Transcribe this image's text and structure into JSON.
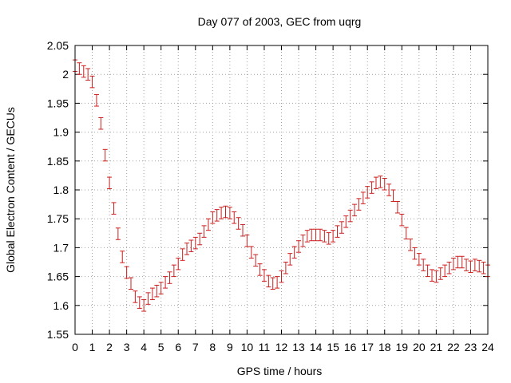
{
  "chart_data": {
    "type": "scatter",
    "title": "Day 077 of 2003, GEC from uqrg",
    "xlabel": "GPS time / hours",
    "ylabel": "Global Electron Content / GECUs",
    "xlim": [
      0,
      24
    ],
    "ylim": [
      1.55,
      2.05
    ],
    "x_ticks": [
      "0",
      "1",
      "2",
      "3",
      "4",
      "5",
      "6",
      "7",
      "8",
      "9",
      "10",
      "11",
      "12",
      "13",
      "14",
      "15",
      "16",
      "17",
      "18",
      "19",
      "20",
      "21",
      "22",
      "23",
      "24"
    ],
    "y_ticks": [
      "1.55",
      "1.6",
      "1.65",
      "1.7",
      "1.75",
      "1.8",
      "1.85",
      "1.9",
      "1.95",
      "2",
      "2.05"
    ],
    "grid": true,
    "legend": "none",
    "series_color": "#cc1f1f",
    "error": 0.01,
    "x": [
      0,
      0.25,
      0.5,
      0.75,
      1,
      1.25,
      1.5,
      1.75,
      2,
      2.25,
      2.5,
      2.75,
      3,
      3.25,
      3.5,
      3.75,
      4,
      4.25,
      4.5,
      4.75,
      5,
      5.25,
      5.5,
      5.75,
      6,
      6.25,
      6.5,
      6.75,
      7,
      7.25,
      7.5,
      7.75,
      8,
      8.25,
      8.5,
      8.75,
      9,
      9.25,
      9.5,
      9.75,
      10,
      10.25,
      10.5,
      10.75,
      11,
      11.25,
      11.5,
      11.75,
      12,
      12.25,
      12.5,
      12.75,
      13,
      13.25,
      13.5,
      13.75,
      14,
      14.25,
      14.5,
      14.75,
      15,
      15.25,
      15.5,
      15.75,
      16,
      16.25,
      16.5,
      16.75,
      17,
      17.25,
      17.5,
      17.75,
      18,
      18.25,
      18.5,
      18.75,
      19,
      19.25,
      19.5,
      19.75,
      20,
      20.25,
      20.5,
      20.75,
      21,
      21.25,
      21.5,
      21.75,
      22,
      22.25,
      22.5,
      22.75,
      23,
      23.25,
      23.5,
      23.75,
      24
    ],
    "y": [
      2.015,
      2.01,
      2.005,
      2.0,
      1.987,
      1.955,
      1.915,
      1.86,
      1.812,
      1.768,
      1.724,
      1.684,
      1.657,
      1.638,
      1.615,
      1.605,
      1.6,
      1.612,
      1.62,
      1.625,
      1.63,
      1.64,
      1.648,
      1.66,
      1.672,
      1.688,
      1.698,
      1.703,
      1.708,
      1.715,
      1.728,
      1.74,
      1.752,
      1.756,
      1.76,
      1.762,
      1.76,
      1.752,
      1.742,
      1.73,
      1.712,
      1.692,
      1.678,
      1.662,
      1.652,
      1.642,
      1.638,
      1.64,
      1.65,
      1.665,
      1.68,
      1.692,
      1.702,
      1.712,
      1.72,
      1.722,
      1.722,
      1.722,
      1.72,
      1.716,
      1.72,
      1.728,
      1.735,
      1.745,
      1.755,
      1.765,
      1.775,
      1.786,
      1.796,
      1.804,
      1.812,
      1.814,
      1.81,
      1.8,
      1.79,
      1.77,
      1.748,
      1.725,
      1.705,
      1.69,
      1.68,
      1.67,
      1.66,
      1.652,
      1.65,
      1.655,
      1.66,
      1.665,
      1.672,
      1.675,
      1.675,
      1.67,
      1.667,
      1.67,
      1.668,
      1.665,
      1.66
    ]
  }
}
